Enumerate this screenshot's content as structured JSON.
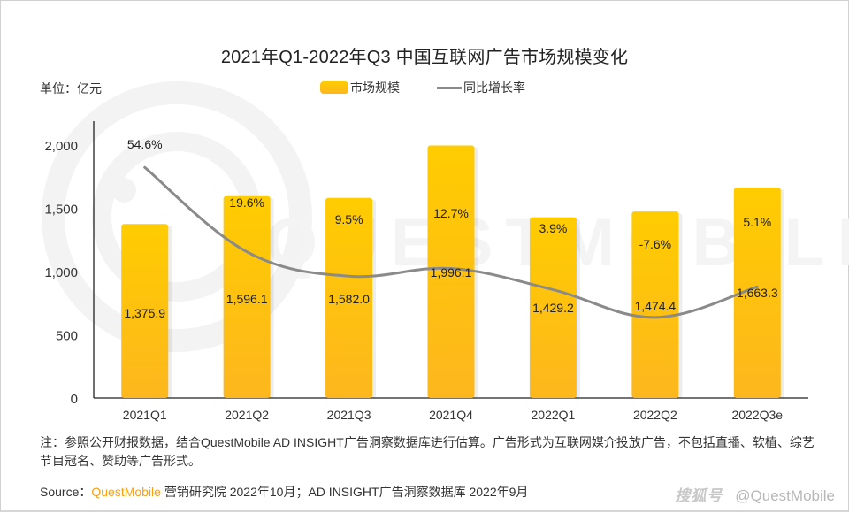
{
  "title": "2021年Q1-2022年Q3 中国互联网广告市场规模变化",
  "unit_label": "单位：亿元",
  "legend": {
    "bar_label": "市场规模",
    "line_label": "同比增长率"
  },
  "colors": {
    "bar_top": "#ffcc00",
    "bar_bottom": "#fdb71e",
    "line": "#8a8a8a",
    "brand": "#f7a012"
  },
  "chart_data": {
    "type": "bar",
    "title": "2021年Q1-2022年Q3 中国互联网广告市场规模变化",
    "xlabel": "",
    "ylabel": "单位：亿元",
    "categories": [
      "2021Q1",
      "2021Q2",
      "2021Q3",
      "2021Q4",
      "2022Q1",
      "2022Q2",
      "2022Q3e"
    ],
    "ylim": [
      0,
      2000
    ],
    "yticks": [
      0,
      500,
      1000,
      1500,
      2000
    ],
    "ytick_labels": [
      "0",
      "500",
      "1,000",
      "1,500",
      "2,000"
    ],
    "grid": false,
    "legend_position": "top-center",
    "series": [
      {
        "name": "市场规模",
        "type": "bar",
        "values": [
          1375.9,
          1596.1,
          1582.0,
          1996.1,
          1429.2,
          1474.4,
          1663.3
        ],
        "labels": [
          "1,375.9",
          "1,596.1",
          "1,582.0",
          "1,996.1",
          "1,429.2",
          "1,474.4",
          "1,663.3"
        ]
      },
      {
        "name": "同比增长率",
        "type": "line",
        "unit": "%",
        "secondary_axis": true,
        "smooth": true,
        "values": [
          54.6,
          19.6,
          9.5,
          12.7,
          3.9,
          -7.6,
          5.1
        ],
        "labels": [
          "54.6%",
          "19.6%",
          "9.5%",
          "12.7%",
          "3.9%",
          "-7.6%",
          "5.1%"
        ]
      }
    ]
  },
  "watermark": {
    "background": "QUESTMOBILE",
    "sohu": "搜狐号",
    "account": "@QuestMobile"
  },
  "footer": {
    "note": "注：参照公开财报数据，结合QuestMobile AD INSIGHT广告洞察数据库进行估算。广告形式为互联网媒介投放广告，不包括直播、软植、综艺节目冠名、赞助等广告形式。",
    "source_prefix": "Source：",
    "source_brand": "QuestMobile",
    "source_rest": "营销研究院 2022年10月；AD INSIGHT广告洞察数据库 2022年9月"
  }
}
